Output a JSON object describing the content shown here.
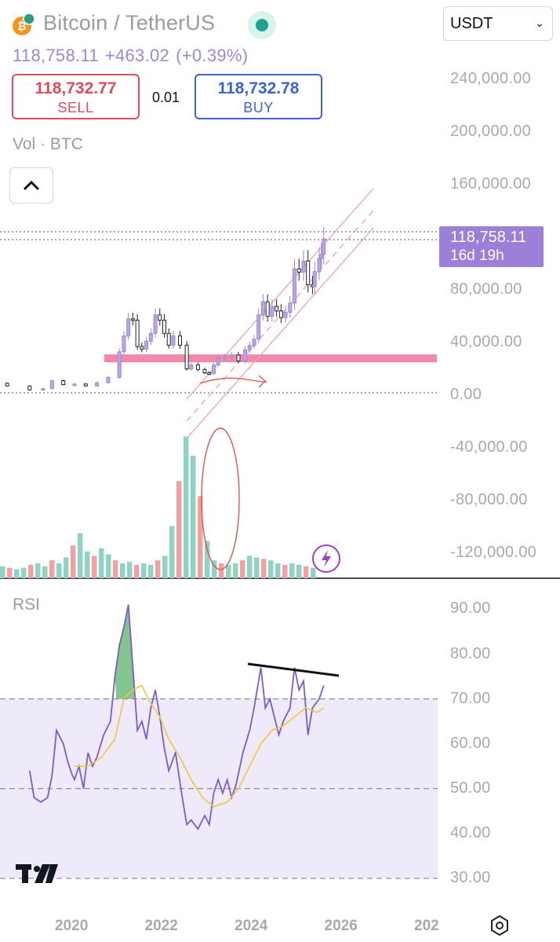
{
  "header": {
    "pair_title": "Bitcoin / TetherUS",
    "last_price": "118,758.11",
    "change": "+463.02",
    "change_pct": "(+0.39%)",
    "icons": {
      "coin": "bitcoin-icon",
      "status": "market-open-dot-icon"
    }
  },
  "trade": {
    "sell_price": "118,732.77",
    "sell_label": "SELL",
    "spread": "0.01",
    "buy_price": "118,732.78",
    "buy_label": "BUY",
    "colors": {
      "sell": "#e04b5c",
      "buy": "#3a63d6"
    }
  },
  "currency_select": {
    "value": "USDT"
  },
  "indicators": {
    "volume_label": "Vol · BTC",
    "rsi_label": "RSI"
  },
  "price_tag": {
    "price": "118,758.11",
    "countdown": "16d 19h",
    "color": "#9c7fd8"
  },
  "chart_data": [
    {
      "type": "candlestick",
      "title": "Bitcoin / TetherUS",
      "interval": "monthly",
      "y_ticks": [
        "240,000.00",
        "200,000.00",
        "160,000.00",
        "80,000.00",
        "40,000.00",
        "0.00",
        "-40,000.00",
        "-80,000.00",
        "-120,000.00"
      ],
      "ylim": [
        -140000,
        250000
      ],
      "price_series": [
        [
          2018.0,
          9000
        ],
        [
          2018.5,
          7000
        ],
        [
          2019.0,
          4000
        ],
        [
          2019.3,
          5000
        ],
        [
          2019.5,
          11000
        ],
        [
          2019.75,
          8000
        ],
        [
          2020.0,
          8500
        ],
        [
          2020.25,
          7000
        ],
        [
          2020.5,
          9500
        ],
        [
          2020.75,
          13500
        ],
        [
          2021.0,
          33000
        ],
        [
          2021.1,
          45000
        ],
        [
          2021.2,
          58000
        ],
        [
          2021.3,
          57000
        ],
        [
          2021.4,
          37000
        ],
        [
          2021.5,
          35000
        ],
        [
          2021.6,
          41000
        ],
        [
          2021.7,
          47000
        ],
        [
          2021.8,
          61000
        ],
        [
          2021.9,
          57000
        ],
        [
          2022.0,
          47000
        ],
        [
          2022.1,
          38000
        ],
        [
          2022.2,
          45000
        ],
        [
          2022.35,
          38000
        ],
        [
          2022.5,
          20000
        ],
        [
          2022.6,
          23000
        ],
        [
          2022.75,
          19500
        ],
        [
          2022.9,
          17000
        ],
        [
          2023.0,
          16500
        ],
        [
          2023.1,
          23000
        ],
        [
          2023.2,
          28000
        ],
        [
          2023.35,
          29000
        ],
        [
          2023.5,
          30500
        ],
        [
          2023.65,
          26000
        ],
        [
          2023.8,
          34500
        ],
        [
          2023.9,
          37700
        ],
        [
          2024.0,
          42500
        ],
        [
          2024.1,
          61000
        ],
        [
          2024.2,
          71000
        ],
        [
          2024.3,
          60000
        ],
        [
          2024.4,
          67500
        ],
        [
          2024.5,
          64000
        ],
        [
          2024.6,
          59000
        ],
        [
          2024.7,
          63000
        ],
        [
          2024.8,
          70000
        ],
        [
          2024.9,
          96000
        ],
        [
          2025.0,
          93500
        ],
        [
          2025.1,
          102000
        ],
        [
          2025.2,
          84000
        ],
        [
          2025.3,
          82500
        ],
        [
          2025.35,
          94000
        ],
        [
          2025.45,
          104000
        ],
        [
          2025.5,
          107000
        ],
        [
          2025.55,
          118758
        ]
      ],
      "support_zone": [
        25000,
        31000
      ],
      "volume_series": [
        0.08,
        0.07,
        0.06,
        0.07,
        0.09,
        0.1,
        0.08,
        0.12,
        0.1,
        0.14,
        0.22,
        0.3,
        0.18,
        0.15,
        0.2,
        0.16,
        0.12,
        0.1,
        0.11,
        0.09,
        0.1,
        0.09,
        0.12,
        0.15,
        0.35,
        0.65,
        0.95,
        0.82,
        0.55,
        0.25,
        0.12,
        0.1,
        0.09,
        0.1,
        0.12,
        0.15,
        0.14,
        0.13,
        0.12,
        0.1,
        0.09,
        0.1,
        0.09,
        0.08,
        0.07
      ],
      "price_line": 118758.11
    },
    {
      "type": "line",
      "title": "RSI",
      "x_ticks": [
        "2020",
        "2022",
        "2024",
        "2026",
        "202"
      ],
      "y_ticks": [
        "90.00",
        "80.00",
        "70.00",
        "60.00",
        "50.00",
        "40.00",
        "30.00"
      ],
      "ylim": [
        28,
        95
      ],
      "bands": [
        30,
        50,
        70
      ],
      "series": [
        {
          "values": [
            [
              2019.0,
              54
            ],
            [
              2019.1,
              48
            ],
            [
              2019.25,
              47
            ],
            [
              2019.4,
              48
            ],
            [
              2019.5,
              53
            ],
            [
              2019.6,
              63
            ],
            [
              2019.75,
              60
            ],
            [
              2019.85,
              56
            ],
            [
              2019.95,
              53
            ],
            [
              2020.0,
              52
            ],
            [
              2020.1,
              55
            ],
            [
              2020.2,
              50
            ],
            [
              2020.3,
              58
            ],
            [
              2020.4,
              55
            ],
            [
              2020.5,
              57
            ],
            [
              2020.65,
              62
            ],
            [
              2020.8,
              65
            ],
            [
              2020.9,
              75
            ],
            [
              2021.0,
              82
            ],
            [
              2021.1,
              86
            ],
            [
              2021.2,
              91
            ],
            [
              2021.3,
              77
            ],
            [
              2021.4,
              63
            ],
            [
              2021.5,
              65
            ],
            [
              2021.6,
              61
            ],
            [
              2021.7,
              68
            ],
            [
              2021.8,
              72
            ],
            [
              2021.9,
              66
            ],
            [
              2022.0,
              59
            ],
            [
              2022.1,
              54
            ],
            [
              2022.25,
              58
            ],
            [
              2022.4,
              48
            ],
            [
              2022.5,
              42
            ],
            [
              2022.6,
              43
            ],
            [
              2022.75,
              41
            ],
            [
              2022.9,
              44
            ],
            [
              2023.0,
              42
            ],
            [
              2023.1,
              49
            ],
            [
              2023.2,
              52
            ],
            [
              2023.3,
              49
            ],
            [
              2023.4,
              52
            ],
            [
              2023.5,
              48
            ],
            [
              2023.6,
              51
            ],
            [
              2023.75,
              58
            ],
            [
              2023.9,
              63
            ],
            [
              2024.0,
              68
            ],
            [
              2024.15,
              77
            ],
            [
              2024.25,
              68
            ],
            [
              2024.35,
              70
            ],
            [
              2024.45,
              66
            ],
            [
              2024.55,
              62
            ],
            [
              2024.65,
              65
            ],
            [
              2024.8,
              68
            ],
            [
              2024.9,
              77
            ],
            [
              2025.0,
              72
            ],
            [
              2025.1,
              74
            ],
            [
              2025.2,
              62
            ],
            [
              2025.3,
              68
            ],
            [
              2025.45,
              70
            ],
            [
              2025.55,
              73
            ]
          ]
        },
        {
          "values": [
            [
              2020.0,
              55
            ],
            [
              2020.3,
              55
            ],
            [
              2020.6,
              57
            ],
            [
              2020.9,
              61
            ],
            [
              2021.1,
              70
            ],
            [
              2021.3,
              72
            ],
            [
              2021.5,
              73
            ],
            [
              2021.7,
              69
            ],
            [
              2021.9,
              66
            ],
            [
              2022.1,
              61
            ],
            [
              2022.35,
              57
            ],
            [
              2022.6,
              52
            ],
            [
              2022.85,
              48
            ],
            [
              2023.1,
              46
            ],
            [
              2023.4,
              47
            ],
            [
              2023.65,
              50
            ],
            [
              2023.9,
              55
            ],
            [
              2024.15,
              60
            ],
            [
              2024.4,
              63
            ],
            [
              2024.65,
              64
            ],
            [
              2024.9,
              66
            ],
            [
              2025.15,
              68
            ],
            [
              2025.4,
              67
            ],
            [
              2025.55,
              68
            ]
          ]
        }
      ]
    }
  ]
}
